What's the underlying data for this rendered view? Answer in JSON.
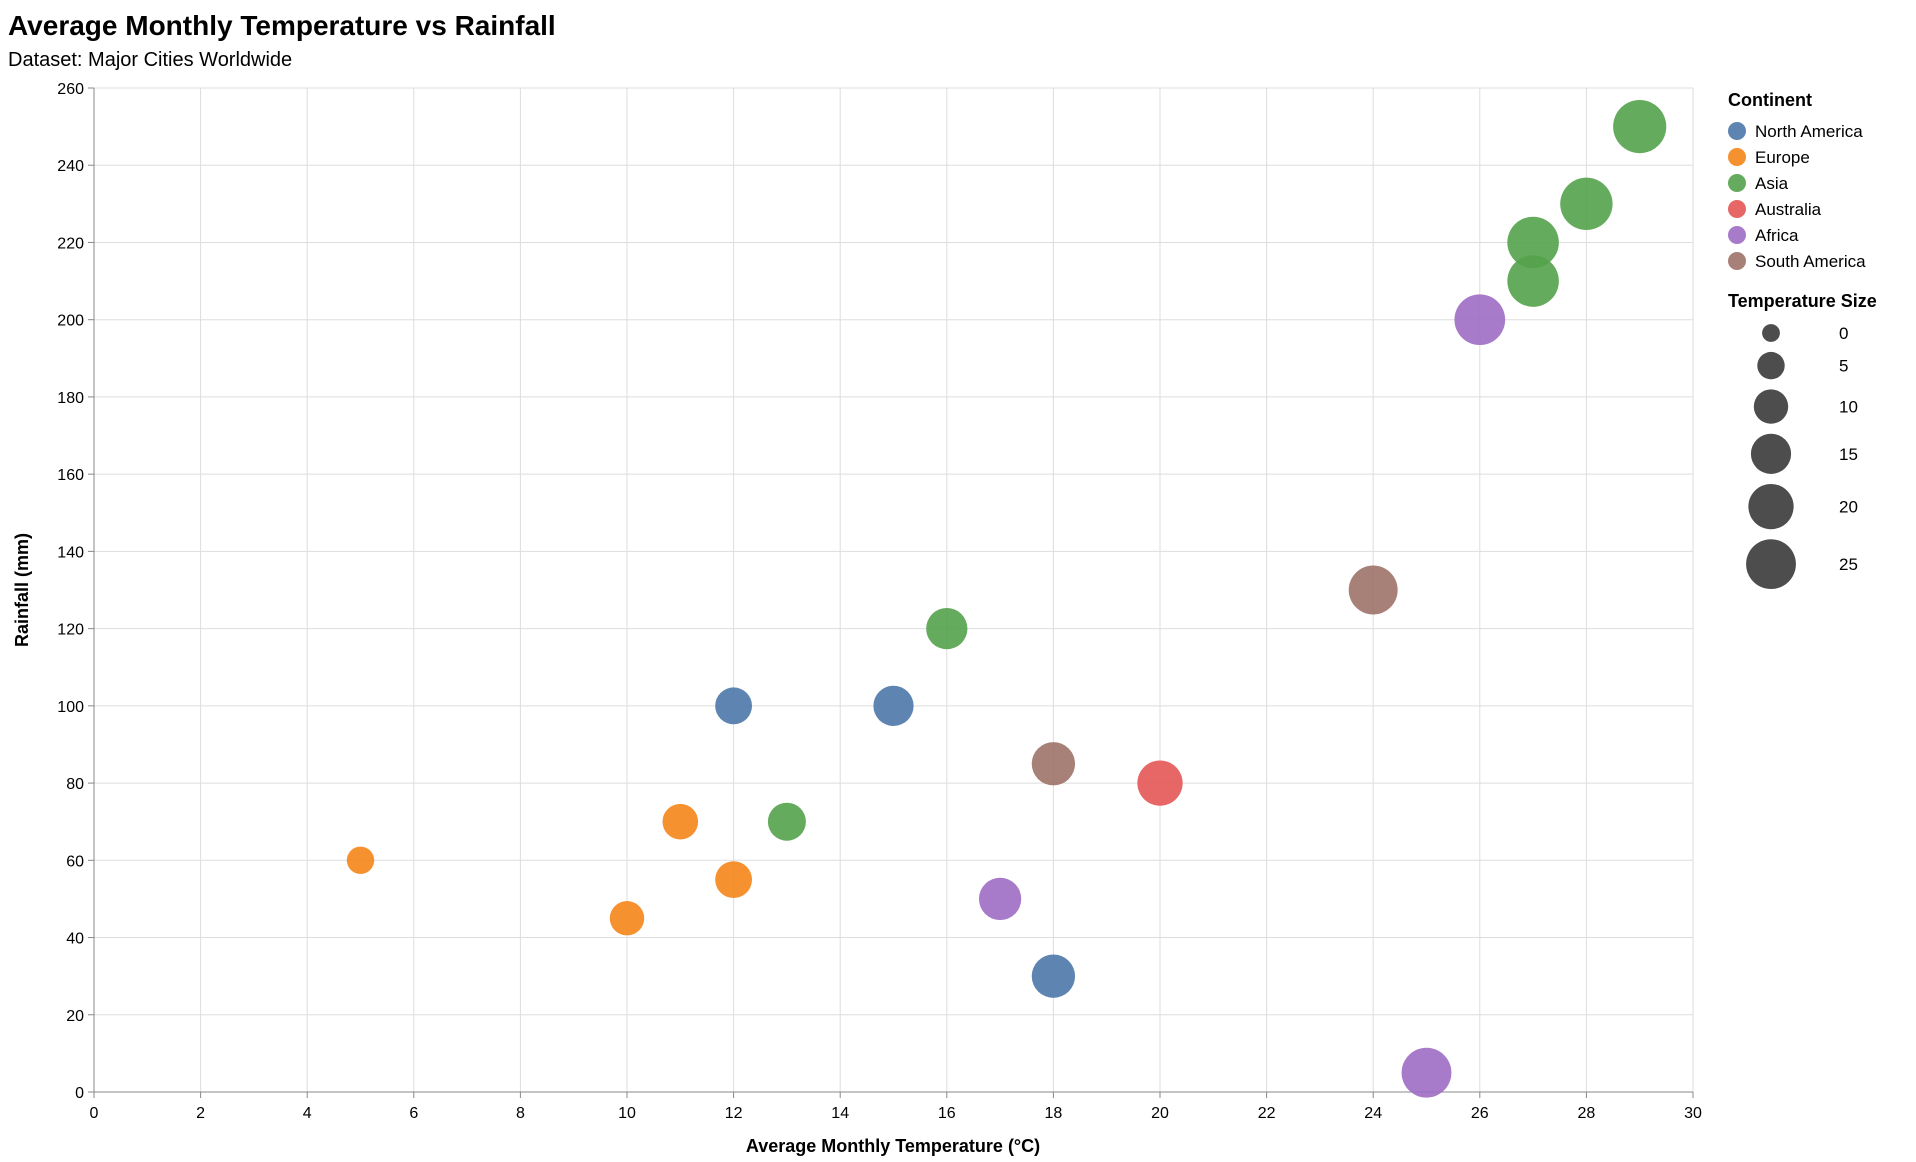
{
  "chart_data": {
    "type": "scatter",
    "title": "Average Monthly Temperature vs Rainfall",
    "subtitle": "Dataset: Major Cities Worldwide",
    "xlabel": "Average Monthly Temperature (°C)",
    "ylabel": "Rainfall (mm)",
    "xlim": [
      0,
      30
    ],
    "ylim": [
      0,
      260
    ],
    "xticks": [
      0,
      2,
      4,
      6,
      8,
      10,
      12,
      14,
      16,
      18,
      20,
      22,
      24,
      26,
      28,
      30
    ],
    "yticks": [
      0,
      20,
      40,
      60,
      80,
      100,
      120,
      140,
      160,
      180,
      200,
      220,
      240,
      260
    ],
    "grid": true,
    "legend_placement": "right",
    "color_legend": {
      "title": "Continent",
      "items": [
        {
          "name": "North America",
          "color": "#4c78a8"
        },
        {
          "name": "Europe",
          "color": "#f58518"
        },
        {
          "name": "Asia",
          "color": "#54a24b"
        },
        {
          "name": "Australia",
          "color": "#e45756"
        },
        {
          "name": "Africa",
          "color": "#9d6bc4"
        },
        {
          "name": "South America",
          "color": "#9d7268"
        }
      ]
    },
    "size_legend": {
      "title": "Temperature Size",
      "values": [
        0,
        5,
        10,
        15,
        20,
        25
      ]
    },
    "points": [
      {
        "x": 5,
        "y": 60,
        "continent": "Europe"
      },
      {
        "x": 10,
        "y": 45,
        "continent": "Europe"
      },
      {
        "x": 11,
        "y": 70,
        "continent": "Europe"
      },
      {
        "x": 12,
        "y": 55,
        "continent": "Europe"
      },
      {
        "x": 12,
        "y": 100,
        "continent": "North America"
      },
      {
        "x": 15,
        "y": 100,
        "continent": "North America"
      },
      {
        "x": 18,
        "y": 30,
        "continent": "North America"
      },
      {
        "x": 13,
        "y": 70,
        "continent": "Asia"
      },
      {
        "x": 16,
        "y": 120,
        "continent": "Asia"
      },
      {
        "x": 27,
        "y": 210,
        "continent": "Asia"
      },
      {
        "x": 27,
        "y": 220,
        "continent": "Asia"
      },
      {
        "x": 28,
        "y": 230,
        "continent": "Asia"
      },
      {
        "x": 29,
        "y": 250,
        "continent": "Asia"
      },
      {
        "x": 20,
        "y": 80,
        "continent": "Australia"
      },
      {
        "x": 17,
        "y": 50,
        "continent": "Africa"
      },
      {
        "x": 25,
        "y": 5,
        "continent": "Africa"
      },
      {
        "x": 26,
        "y": 200,
        "continent": "Africa"
      },
      {
        "x": 18,
        "y": 85,
        "continent": "South America"
      },
      {
        "x": 24,
        "y": 130,
        "continent": "South America"
      }
    ]
  }
}
